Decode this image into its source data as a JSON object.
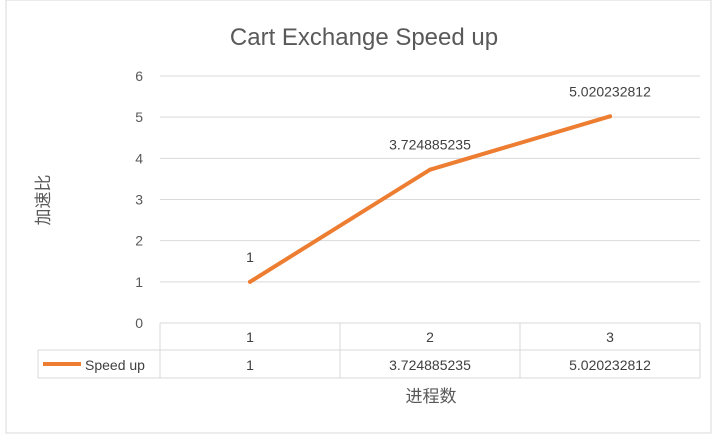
{
  "chart_data": {
    "type": "line",
    "title": "Cart Exchange Speed up",
    "xlabel": "进程数",
    "ylabel": "加速比",
    "categories": [
      "1",
      "2",
      "3"
    ],
    "series": [
      {
        "name": "Speed up",
        "values": [
          1,
          3.724885235,
          5.020232812
        ],
        "data_labels": [
          "1",
          "3.724885235",
          "5.020232812"
        ],
        "color": "#ED7D31"
      }
    ],
    "ylim": [
      0,
      6
    ],
    "yticks": [
      "0",
      "1",
      "2",
      "3",
      "4",
      "5",
      "6"
    ],
    "grid": true,
    "legend": "data-table",
    "data_table": true
  }
}
